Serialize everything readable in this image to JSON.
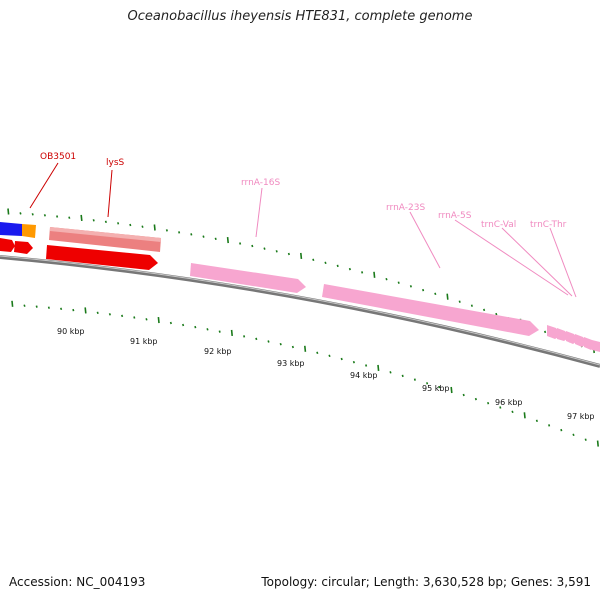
{
  "title": "Oceanobacillus iheyensis HTE831, complete genome",
  "footer": {
    "accession": "Accession: NC_004193",
    "summary": "Topology: circular; Length: 3,630,528 bp; Genes: 3,591"
  },
  "colors": {
    "backbone": "#7a7a7a",
    "tick": "#1a7a1a",
    "red_feature": "#ee0000",
    "salmon_feature": "#ec8080",
    "pink_feature": "#f7a6d0",
    "blue_feature": "#1a1aee",
    "orange_feature": "#ff9900",
    "red_label": "#cc0000",
    "pink_label": "#f08ac0"
  },
  "scale_labels": [
    "90 kbp",
    "91 kbp",
    "92 kbp",
    "93 kbp",
    "94 kbp",
    "95 kbp",
    "96 kbp",
    "97 kbp"
  ],
  "gene_labels": [
    {
      "text": "OB3501",
      "kind": "red"
    },
    {
      "text": "lysS",
      "kind": "red"
    },
    {
      "text": "rrnA-16S",
      "kind": "pink"
    },
    {
      "text": "rrnA-23S",
      "kind": "pink"
    },
    {
      "text": "rrnA-5S",
      "kind": "pink"
    },
    {
      "text": "trnC-Val",
      "kind": "pink"
    },
    {
      "text": "trnC-Thr",
      "kind": "pink"
    }
  ]
}
